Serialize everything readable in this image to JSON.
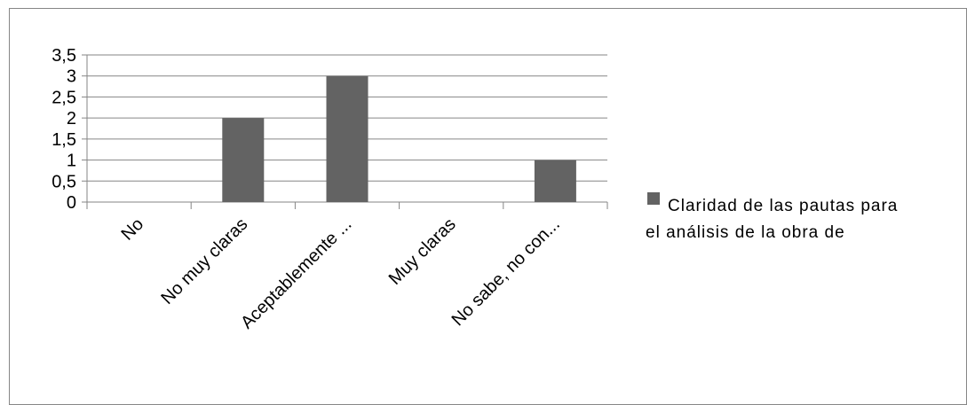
{
  "chart_data": {
    "type": "bar",
    "title": "",
    "xlabel": "",
    "ylabel": "",
    "categories": [
      "No",
      "No muy claras",
      "Aceptablemente ...",
      "Muy claras",
      "No sabe, no con..."
    ],
    "series": [
      {
        "name": "Claridad de las pautas para el análisis de la obra de",
        "values": [
          0,
          2,
          3,
          0,
          1
        ],
        "color": "#636363"
      }
    ],
    "ylim": [
      0,
      3.5
    ],
    "yticks": [
      "0",
      "0,5",
      "1",
      "1,5",
      "2",
      "2,5",
      "3",
      "3,5"
    ],
    "grid": true,
    "legend_position": "right",
    "legend_lines": [
      "Claridad de las pautas para",
      "el análisis de la obra de"
    ]
  }
}
